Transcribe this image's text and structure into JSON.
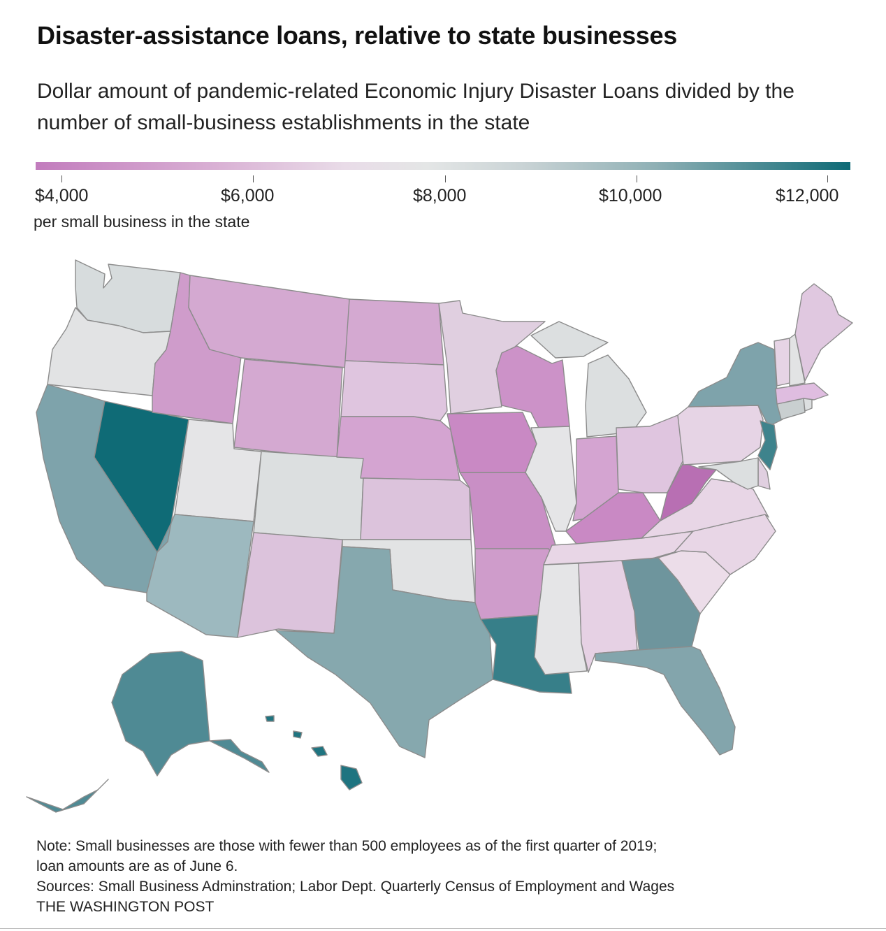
{
  "title": "Disaster-assistance loans, relative to state businesses",
  "subtitle": "Dollar amount of pandemic-related Economic Injury Disaster Loans divided by the number of small-business establishments in the state",
  "legend": {
    "ticks": [
      "$4,000",
      "$6,000",
      "$8,000",
      "$10,000",
      "$12,000"
    ],
    "unit": "per small business in the state",
    "colors": [
      "#c27cbd",
      "#d9b0d4",
      "#e9dce8",
      "#e4e6e6",
      "#c9d3d5",
      "#8fb0b5",
      "#0e6a76"
    ]
  },
  "note": {
    "line1": "Note: Small businesses are those with fewer than 500 employees as of the first quarter of 2019;",
    "line2": "loan amounts are as of June 6.",
    "sources": "Sources: Small Business Adminstration; Labor Dept. Quarterly Census of Employment and Wages",
    "credit": "THE WASHINGTON POST"
  },
  "state_colors": {
    "WA": "#d7dcdd",
    "OR": "#e2e3e4",
    "CA": "#7ea3ab",
    "NV": "#0f6b76",
    "ID": "#cf9ccb",
    "MT": "#d4a9d1",
    "WY": "#d4a9d1",
    "UT": "#e5e5e7",
    "AZ": "#9db9bf",
    "CO": "#dcdfe0",
    "NM": "#dcc3dc",
    "ND": "#d4a9d1",
    "SD": "#dfc5df",
    "NE": "#d4a4d1",
    "KS": "#dcc3dc",
    "OK": "#e2e3e4",
    "TX": "#86a8ae",
    "MN": "#e0cfe0",
    "IA": "#c989c4",
    "MO": "#c98fc5",
    "AR": "#cf9ccb",
    "LA": "#377f89",
    "WI": "#cc92c8",
    "IL": "#e5e5e7",
    "MI": "#dcdfe0",
    "IN": "#d4a4d1",
    "OH": "#dfc5df",
    "KY": "#c989c4",
    "TN": "#e8d6e6",
    "MS": "#e5e5e7",
    "AL": "#e6d1e4",
    "GA": "#6e959d",
    "FL": "#83a5ac",
    "SC": "#ecdde9",
    "NC": "#e8d6e6",
    "VA": "#e8d6e6",
    "WV": "#b86fb3",
    "PA": "#e6d4e5",
    "NY": "#7ea3ab",
    "NJ": "#3e838c",
    "DE": "#e0cfe0",
    "MD": "#dcdfe0",
    "CT": "#c9cfd0",
    "RI": "#dcdfe0",
    "MA": "#dfbde0",
    "VT": "#e6d4e5",
    "NH": "#e2e3e4",
    "ME": "#e0c8e0",
    "AK": "#4f8a94",
    "HI": "#1f7480"
  }
}
